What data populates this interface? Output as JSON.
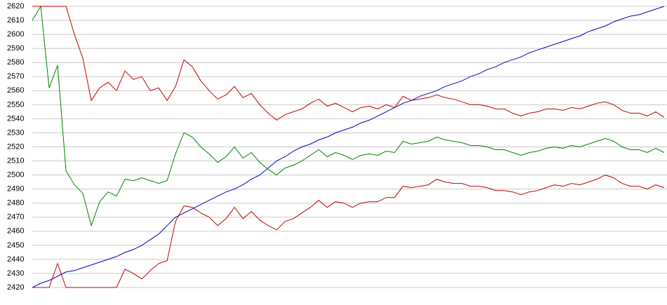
{
  "chart_data": {
    "type": "line",
    "categories": [
      null,
      null,
      null,
      null,
      null,
      null,
      null,
      null,
      null,
      null,
      null,
      null,
      null,
      null,
      null,
      null,
      null,
      null,
      null,
      null,
      null,
      null,
      null,
      null,
      null,
      null,
      null,
      null,
      null,
      null,
      null,
      null,
      null,
      null,
      null,
      null,
      null,
      null,
      null,
      null,
      null,
      null,
      null,
      null,
      null,
      null,
      null,
      null,
      null,
      null,
      null,
      null,
      null,
      null,
      null,
      null,
      null,
      null,
      null,
      null,
      null,
      null,
      null,
      null,
      null,
      null,
      null,
      null,
      null,
      null,
      null,
      null,
      null,
      null,
      null,
      null
    ],
    "series": [
      {
        "color": "#0000c0",
        "values": [
          2420,
          2423,
          2425,
          2428,
          2431,
          2432,
          2434,
          2436,
          2438,
          2440,
          2442,
          2445,
          2447,
          2450,
          2454,
          2458,
          2464,
          2470,
          2473,
          2476,
          2479,
          2482,
          2485,
          2488,
          2490,
          2493,
          2497,
          2500,
          2505,
          2510,
          2513,
          2517,
          2520,
          2522,
          2525,
          2527,
          2530,
          2532,
          2534,
          2537,
          2539,
          2542,
          2545,
          2548,
          2551,
          2553,
          2556,
          2558,
          2560,
          2563,
          2565,
          2567,
          2570,
          2572,
          2575,
          2577,
          2580,
          2582,
          2584,
          2587,
          2589,
          2591,
          2593,
          2595,
          2597,
          2599,
          2602,
          2604,
          2606,
          2609,
          2611,
          2613,
          2614,
          2616,
          2618,
          2620
        ]
      },
      {
        "color": "#008000",
        "values": [
          2610,
          2620,
          2562,
          2578,
          2503,
          2493,
          2487,
          2464,
          2481,
          2488,
          2485,
          2497,
          2496,
          2498,
          2496,
          2494,
          2496,
          2515,
          2530,
          2527,
          2520,
          2515,
          2509,
          2513,
          2520,
          2512,
          2516,
          2509,
          2504,
          2500,
          2505,
          2507,
          2510,
          2514,
          2518,
          2513,
          2516,
          2514,
          2511,
          2514,
          2515,
          2514,
          2517,
          2516,
          2524,
          2522,
          2523,
          2524,
          2527,
          2525,
          2524,
          2523,
          2521,
          2521,
          2520,
          2518,
          2518,
          2516,
          2514,
          2516,
          2517,
          2519,
          2520,
          2519,
          2521,
          2520,
          2522,
          2524,
          2526,
          2524,
          2520,
          2518,
          2518,
          2516,
          2519,
          2516
        ]
      },
      {
        "color": "#c00000",
        "values": [
          2620,
          2620,
          2620,
          2620,
          2620,
          2600,
          2583,
          2553,
          2562,
          2566,
          2560,
          2574,
          2568,
          2570,
          2560,
          2562,
          2553,
          2563,
          2582,
          2577,
          2567,
          2560,
          2554,
          2557,
          2563,
          2555,
          2558,
          2550,
          2544,
          2539,
          2543,
          2545,
          2547,
          2551,
          2554,
          2549,
          2551,
          2548,
          2545,
          2548,
          2549,
          2547,
          2550,
          2548,
          2556,
          2553,
          2554,
          2555,
          2557,
          2555,
          2554,
          2552,
          2550,
          2550,
          2549,
          2547,
          2547,
          2544,
          2542,
          2544,
          2545,
          2547,
          2547,
          2546,
          2548,
          2547,
          2549,
          2551,
          2552,
          2550,
          2546,
          2544,
          2544,
          2542,
          2545,
          2541
        ]
      },
      {
        "color": "#c00000",
        "values": [
          2420,
          2420,
          2420,
          2437,
          2420,
          2420,
          2420,
          2420,
          2420,
          2420,
          2420,
          2433,
          2430,
          2426,
          2432,
          2437,
          2439,
          2467,
          2478,
          2477,
          2473,
          2470,
          2464,
          2469,
          2477,
          2469,
          2474,
          2468,
          2464,
          2461,
          2467,
          2469,
          2473,
          2477,
          2482,
          2477,
          2481,
          2480,
          2477,
          2480,
          2481,
          2481,
          2484,
          2484,
          2492,
          2491,
          2492,
          2493,
          2497,
          2495,
          2494,
          2494,
          2492,
          2492,
          2491,
          2489,
          2489,
          2488,
          2486,
          2488,
          2489,
          2491,
          2493,
          2492,
          2494,
          2493,
          2495,
          2497,
          2500,
          2498,
          2494,
          2492,
          2492,
          2490,
          2493,
          2491
        ]
      }
    ],
    "ylim": [
      2420,
      2620
    ],
    "yticks": [
      2420,
      2430,
      2440,
      2450,
      2460,
      2470,
      2480,
      2490,
      2500,
      2510,
      2520,
      2530,
      2540,
      2550,
      2560,
      2570,
      2580,
      2590,
      2600,
      2610,
      2620
    ],
    "grid": true
  }
}
